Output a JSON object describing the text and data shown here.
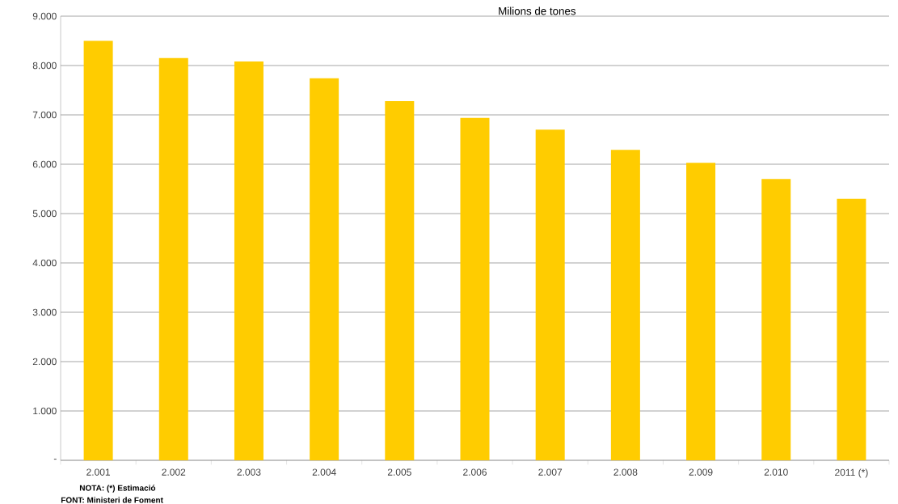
{
  "chart_data": {
    "type": "bar",
    "title": "Milions de tones",
    "categories": [
      "2.001",
      "2.002",
      "2.003",
      "2.004",
      "2.005",
      "2.006",
      "2.007",
      "2.008",
      "2.009",
      "2.010",
      "2011 (*)"
    ],
    "values": [
      8500,
      8150,
      8080,
      7740,
      7280,
      6940,
      6700,
      6290,
      6030,
      5700,
      5300
    ],
    "color": "#ffcc00",
    "ylim": [
      0,
      9000
    ],
    "yticks": [
      {
        "value": 0,
        "label": "-"
      },
      {
        "value": 1000,
        "label": "1.000"
      },
      {
        "value": 2000,
        "label": "2.000"
      },
      {
        "value": 3000,
        "label": "3.000"
      },
      {
        "value": 4000,
        "label": "4.000"
      },
      {
        "value": 5000,
        "label": "5.000"
      },
      {
        "value": 6000,
        "label": "6.000"
      },
      {
        "value": 7000,
        "label": "7.000"
      },
      {
        "value": 8000,
        "label": "8.000"
      },
      {
        "value": 9000,
        "label": "9.000"
      }
    ],
    "grid": "y",
    "annotations": [
      "NOTA: (*) Estimació",
      "FONT: Ministeri de Foment"
    ]
  }
}
